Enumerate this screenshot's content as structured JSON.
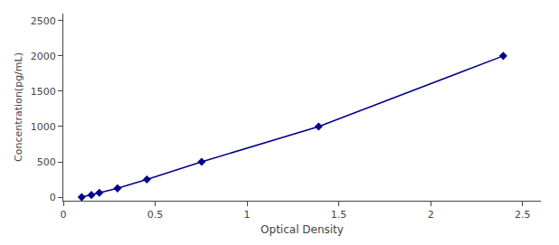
{
  "chart_data": {
    "type": "line",
    "x": [
      0.1,
      0.153,
      0.196,
      0.295,
      0.455,
      0.753,
      1.39,
      2.395
    ],
    "values": [
      0,
      31.25,
      62.5,
      125,
      250,
      500,
      1000,
      2000
    ],
    "color": "#00008B",
    "marker": "diamond",
    "line_style": "solid",
    "xlabel": "Optical Density",
    "ylabel": "Concentration(pg/mL)",
    "xlim": [
      0.0,
      2.6
    ],
    "ylim": [
      -50,
      2600
    ],
    "xticks": [
      0,
      0.5,
      1,
      1.5,
      2,
      2.5
    ],
    "yticks": [
      0,
      500,
      1000,
      1500,
      2000,
      2500
    ],
    "grid": false
  }
}
